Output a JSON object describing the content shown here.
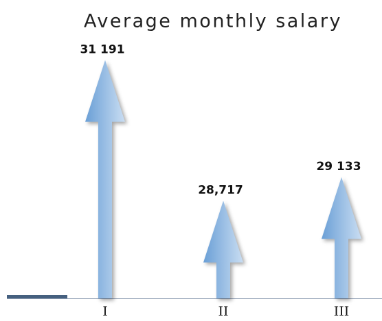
{
  "chart_data": {
    "type": "arrow-bar",
    "title": "Average monthly salary",
    "categories": [
      "I",
      "II",
      "III"
    ],
    "values": [
      31191,
      28717,
      29133
    ],
    "value_labels": [
      "31 191",
      "28,717",
      "29 133"
    ],
    "color": "#6a9fd6",
    "ylim": [
      27000,
      31500
    ]
  }
}
